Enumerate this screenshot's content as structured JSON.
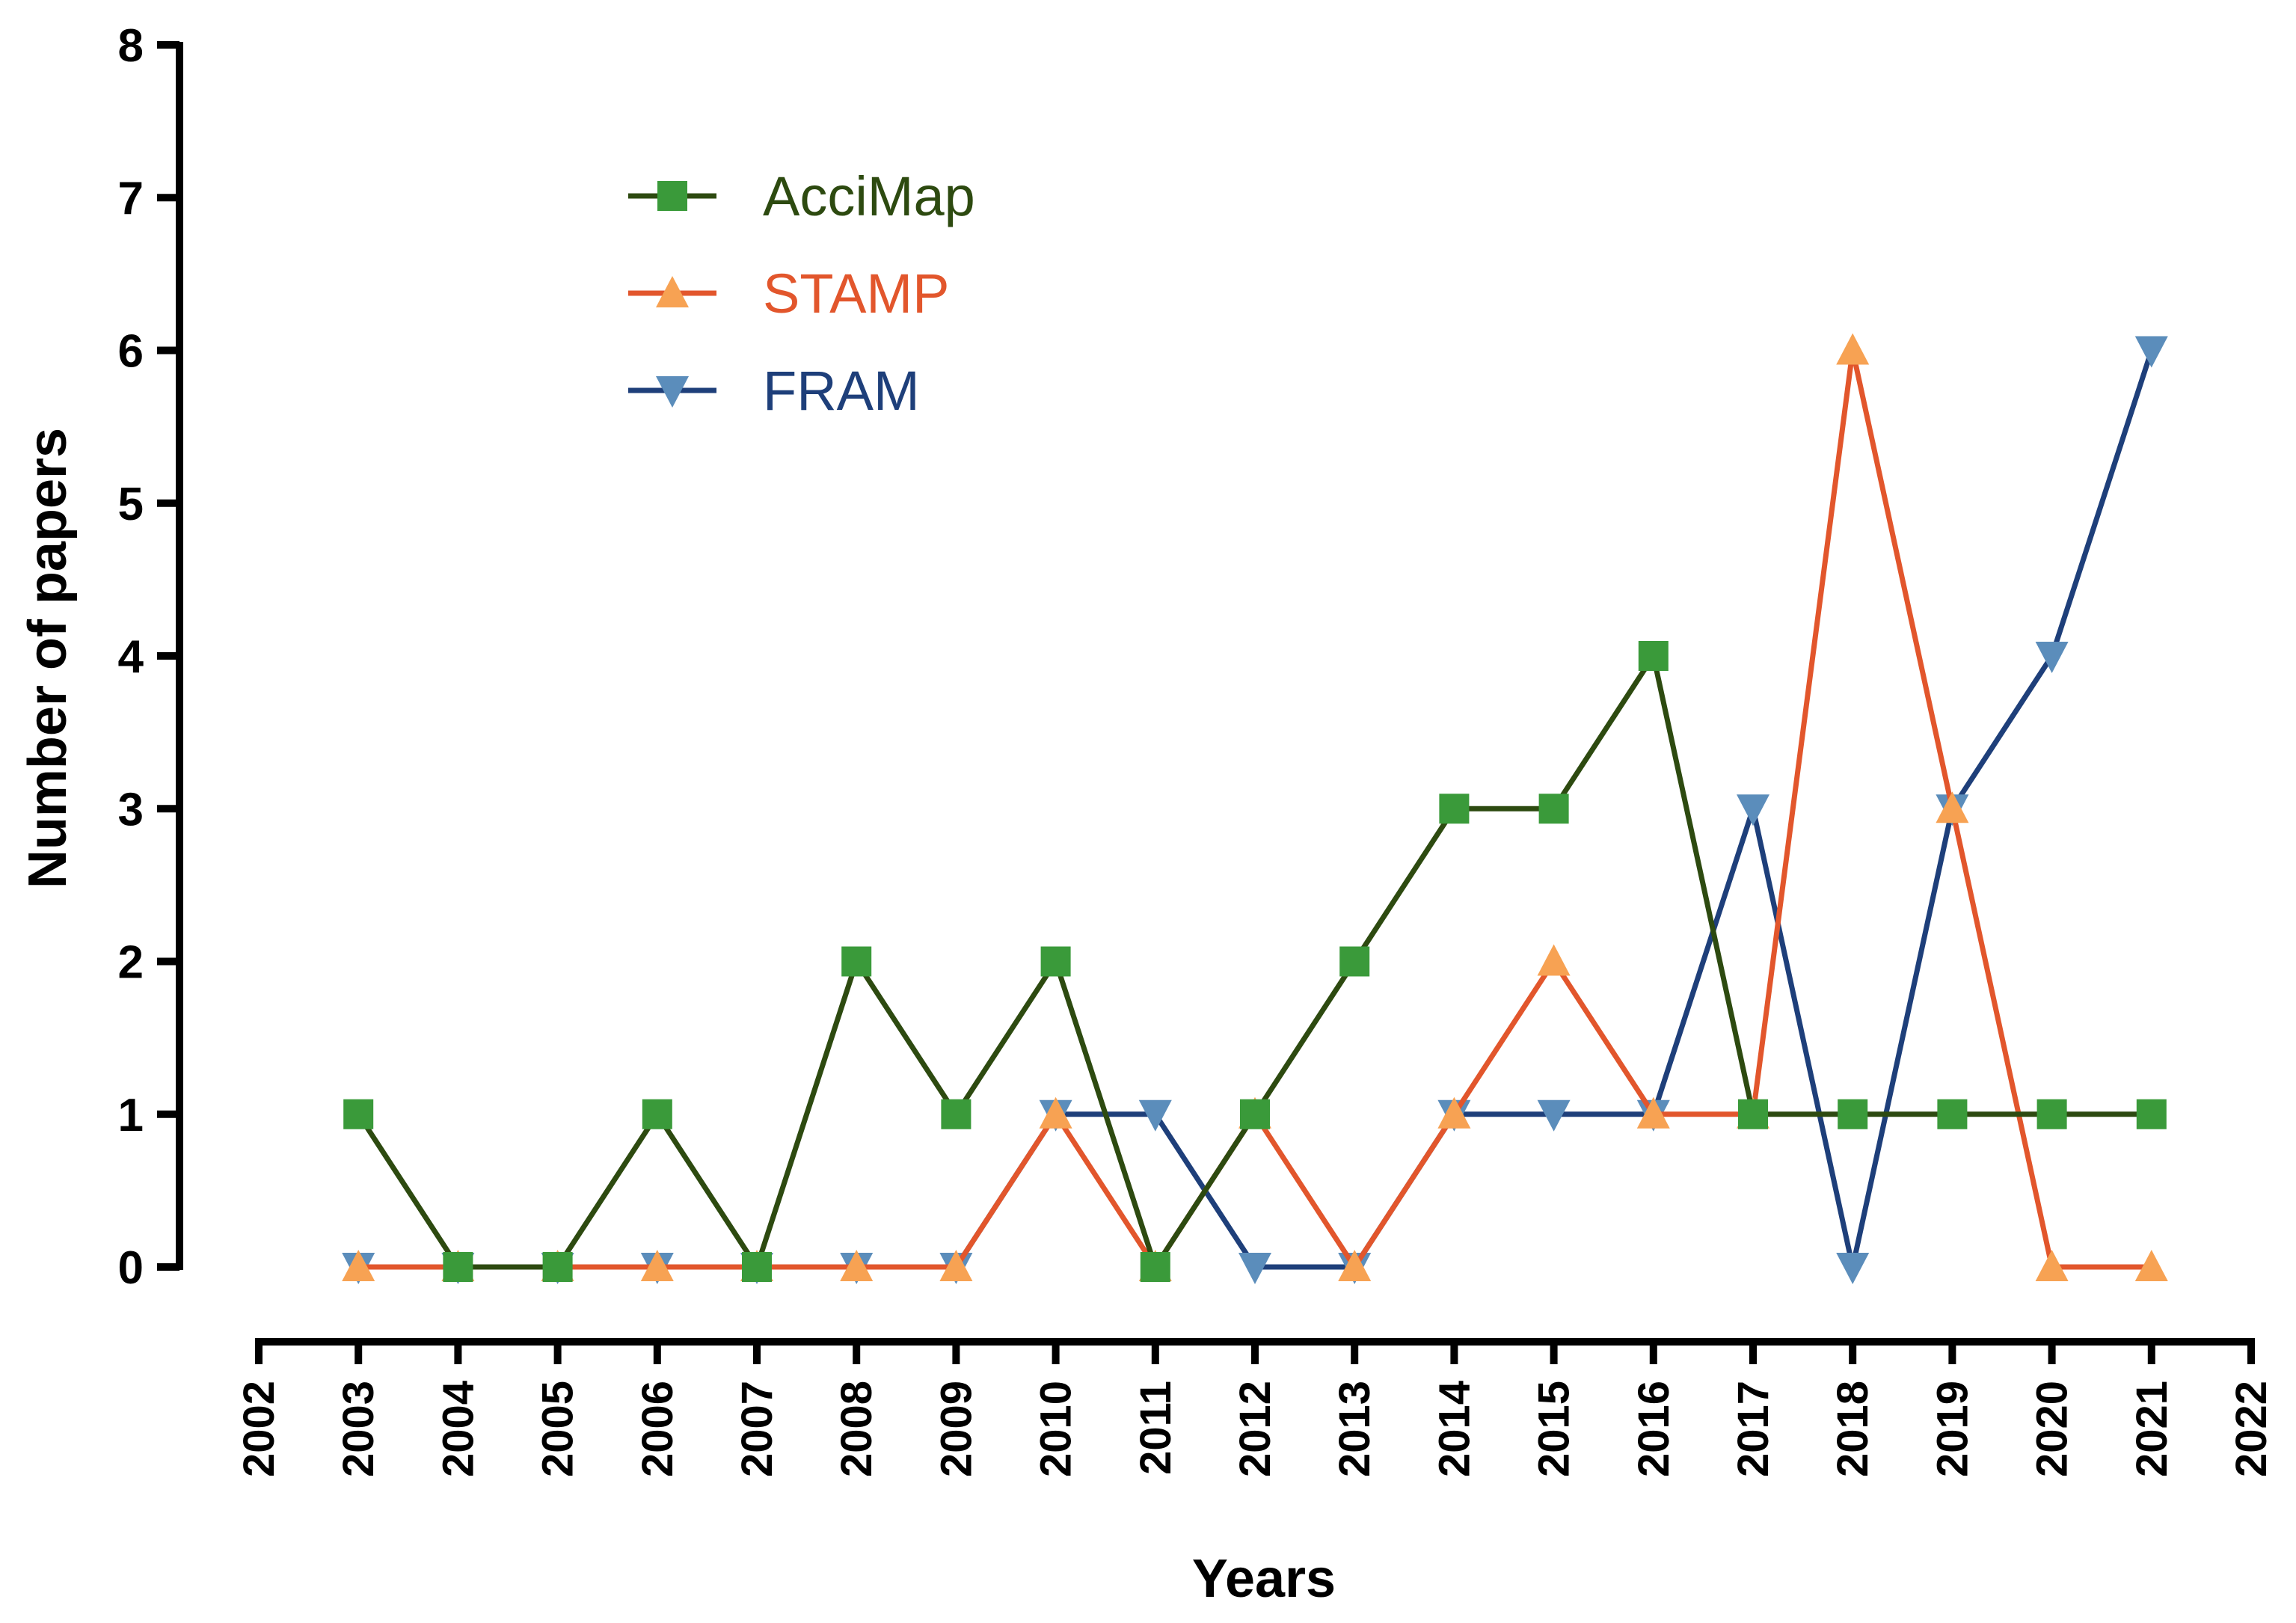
{
  "chart_data": {
    "type": "line",
    "title": "",
    "xlabel": "Years",
    "ylabel": "Number of papers",
    "xlim": [
      2002,
      2022
    ],
    "ylim": [
      0,
      8
    ],
    "x_ticks": [
      "2002",
      "2003",
      "2004",
      "2005",
      "2006",
      "2007",
      "2008",
      "2009",
      "2010",
      "2011",
      "2012",
      "2013",
      "2014",
      "2015",
      "2016",
      "2017",
      "2018",
      "2019",
      "2020",
      "2021",
      "2022"
    ],
    "y_ticks": [
      "0",
      "1",
      "2",
      "3",
      "4",
      "5",
      "6",
      "7",
      "8"
    ],
    "x": [
      2003,
      2004,
      2005,
      2006,
      2007,
      2008,
      2009,
      2010,
      2011,
      2012,
      2013,
      2014,
      2015,
      2016,
      2017,
      2018,
      2019,
      2020,
      2021
    ],
    "legend_position": "top-left",
    "grid": false,
    "series": [
      {
        "name": "AcciMap",
        "line_color": "#2d4a10",
        "marker_color": "#3a9a3a",
        "label_color": "#2d4a10",
        "marker": "square",
        "values": [
          1,
          0,
          0,
          1,
          0,
          2,
          1,
          2,
          0,
          1,
          2,
          3,
          3,
          4,
          1,
          1,
          1,
          1,
          1
        ]
      },
      {
        "name": "STAMP",
        "line_color": "#e2562c",
        "marker_color": "#f7a253",
        "label_color": "#e2562c",
        "marker": "triangle-up",
        "values": [
          0,
          0,
          0,
          0,
          0,
          0,
          0,
          1,
          0,
          1,
          0,
          1,
          2,
          1,
          1,
          6,
          3,
          0,
          0
        ]
      },
      {
        "name": "FRAM",
        "line_color": "#1e3f7a",
        "marker_color": "#5b8dbb",
        "label_color": "#1e3f7a",
        "marker": "triangle-down",
        "values": [
          0,
          0,
          0,
          0,
          0,
          0,
          0,
          1,
          1,
          0,
          0,
          1,
          1,
          1,
          3,
          0,
          3,
          4,
          6
        ]
      }
    ]
  }
}
